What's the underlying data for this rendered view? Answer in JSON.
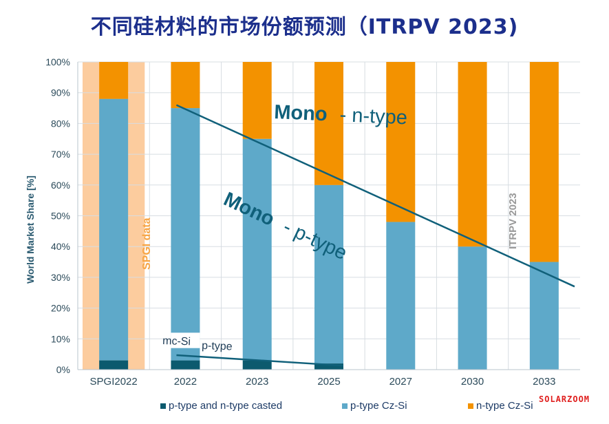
{
  "title": "不同硅材料的市场份额预测（ITRPV 2023)",
  "colors": {
    "casted": "#0c5a6e",
    "p_cz": "#5ea9c9",
    "n_cz": "#f39200",
    "spgi_band": "#fccc9e",
    "trend": "#10607a",
    "title": "#1c2f8c"
  },
  "chart_data": {
    "type": "bar",
    "stacked": true,
    "ylabel": "World Market Share [%]",
    "ylim": [
      0,
      100
    ],
    "ytick_labels": [
      "0%",
      "10%",
      "20%",
      "30%",
      "40%",
      "50%",
      "60%",
      "70%",
      "80%",
      "90%",
      "100%"
    ],
    "categories": [
      "SPGI2022",
      "2022",
      "2023",
      "2025",
      "2027",
      "2030",
      "2033"
    ],
    "series": [
      {
        "name": "p-type and n-type casted",
        "values": [
          3,
          3,
          3,
          2,
          0,
          0,
          0
        ]
      },
      {
        "name": "p-type Cz-Si",
        "values": [
          85,
          82,
          72,
          58,
          48,
          40,
          35
        ]
      },
      {
        "name": "n-type Cz-Si",
        "values": [
          12,
          15,
          25,
          40,
          52,
          60,
          65
        ]
      }
    ],
    "grid": true,
    "legend": "bottom",
    "annotations": {
      "mono_n": "Mono",
      "n_type": "- n-type",
      "mono_p": "Mono",
      "p_type": "- p-type",
      "mc_si": "mc-Si",
      "p_type_small": "p-type",
      "spgi": "SPGI data",
      "itrpv": "ITRPV 2023"
    }
  },
  "watermark": "SOLARZOOM"
}
